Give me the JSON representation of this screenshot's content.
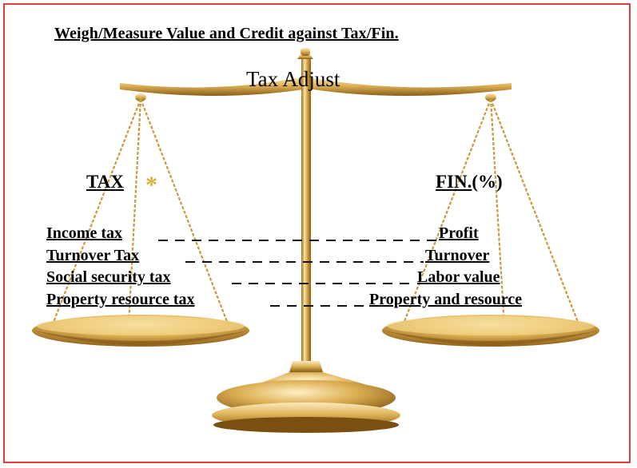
{
  "title": "Weigh/Measure Value and Credit against Tax/Fin.",
  "center_label": "Tax Adjust",
  "left_header": "TAX",
  "left_header_mark": "*",
  "right_header_underlined": "FIN.",
  "right_header_suffix": "(%)",
  "rows": [
    {
      "tax": "Income tax",
      "fin": "Profit"
    },
    {
      "tax": "Turnover Tax",
      "fin": "Turnover"
    },
    {
      "tax": "Social security tax",
      "fin": "Labor value"
    },
    {
      "tax": "Property resource tax",
      "fin": "Property and resource"
    }
  ],
  "colors": {
    "border": "#e23b3b",
    "gold_light": "#f5dea0",
    "gold_mid": "#d4a546",
    "gold_dark": "#8a5e18",
    "star": "#d4b23a"
  }
}
